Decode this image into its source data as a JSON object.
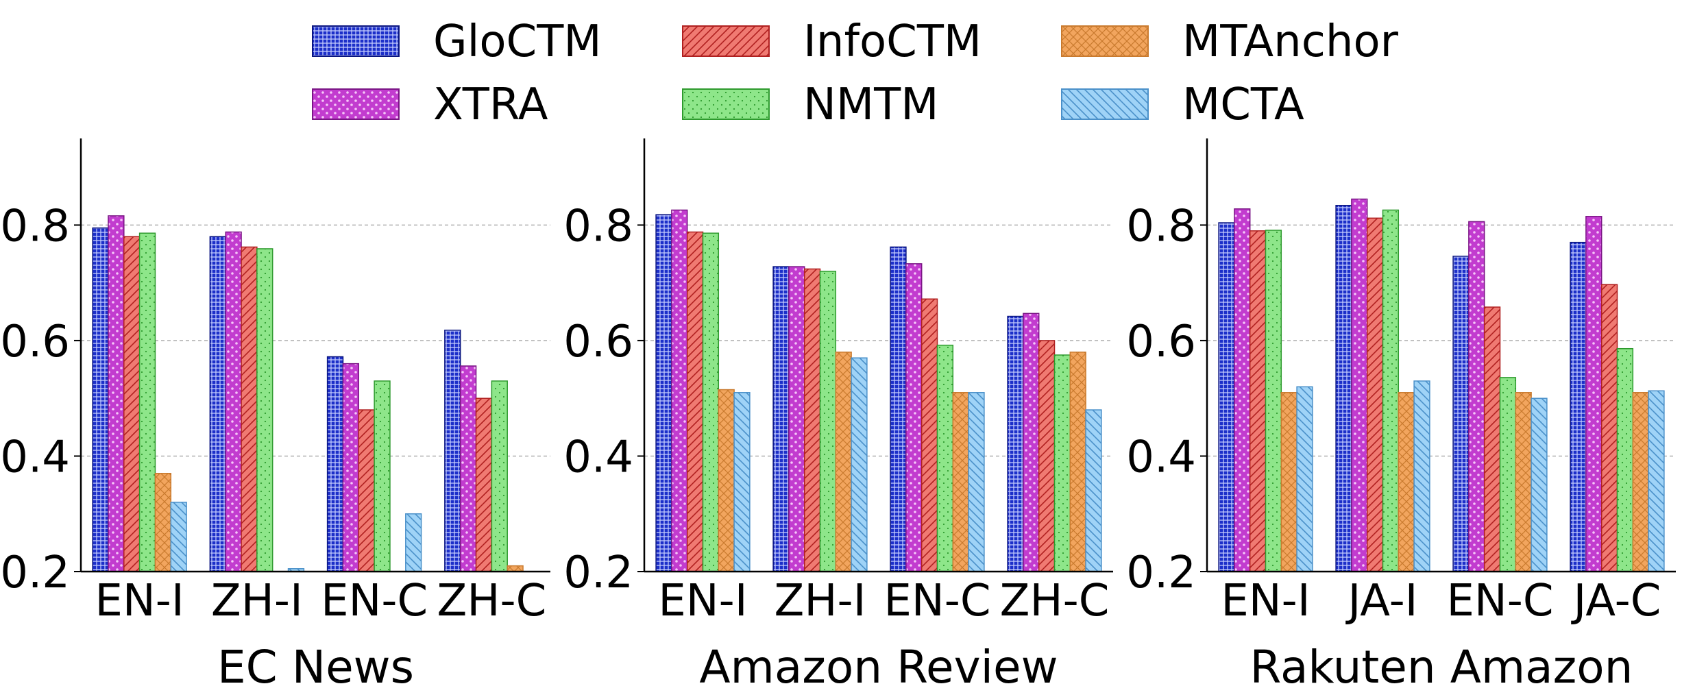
{
  "legend": [
    {
      "name": "GloCTM",
      "color": "#1c2fc9",
      "edge": "#0a1580",
      "pattern": "grid"
    },
    {
      "name": "InfoCTM",
      "color": "#f07a72",
      "edge": "#b02020",
      "pattern": "diag"
    },
    {
      "name": "MTAnchor",
      "color": "#f2a55e",
      "edge": "#c97a2e",
      "pattern": "cross"
    },
    {
      "name": "XTRA",
      "color": "#c23ccf",
      "edge": "#7a1585",
      "pattern": "dots"
    },
    {
      "name": "NMTM",
      "color": "#8ee68a",
      "edge": "#2e9a2e",
      "pattern": "fine"
    },
    {
      "name": "MCTA",
      "color": "#9fd3f7",
      "edge": "#4a90c9",
      "pattern": "back"
    }
  ],
  "chart_data": [
    {
      "type": "bar",
      "title": "EC News",
      "categories": [
        "EN-I",
        "ZH-I",
        "EN-C",
        "ZH-C"
      ],
      "ylim": [
        0.2,
        0.95
      ],
      "yticks": [
        "0.2",
        "0.4",
        "0.6",
        "0.8"
      ],
      "grid": true,
      "series": [
        {
          "name": "GloCTM",
          "values": [
            0.795,
            0.78,
            0.572,
            0.618
          ]
        },
        {
          "name": "XTRA",
          "values": [
            0.816,
            0.788,
            0.56,
            0.556
          ]
        },
        {
          "name": "InfoCTM",
          "values": [
            0.78,
            0.762,
            0.48,
            0.5
          ]
        },
        {
          "name": "NMTM",
          "values": [
            0.786,
            0.759,
            0.53,
            0.53
          ]
        },
        {
          "name": "MTAnchor",
          "values": [
            0.37,
            0.2,
            0.2,
            0.21
          ]
        },
        {
          "name": "MCTA",
          "values": [
            0.32,
            0.205,
            0.3,
            0.2
          ]
        }
      ]
    },
    {
      "type": "bar",
      "title": "Amazon Review",
      "categories": [
        "EN-I",
        "ZH-I",
        "EN-C",
        "ZH-C"
      ],
      "ylim": [
        0.2,
        0.95
      ],
      "yticks": [
        "0.2",
        "0.4",
        "0.6",
        "0.8"
      ],
      "grid": true,
      "series": [
        {
          "name": "GloCTM",
          "values": [
            0.818,
            0.728,
            0.762,
            0.642
          ]
        },
        {
          "name": "XTRA",
          "values": [
            0.826,
            0.728,
            0.733,
            0.647
          ]
        },
        {
          "name": "InfoCTM",
          "values": [
            0.788,
            0.724,
            0.672,
            0.6
          ]
        },
        {
          "name": "NMTM",
          "values": [
            0.786,
            0.72,
            0.592,
            0.575
          ]
        },
        {
          "name": "MTAnchor",
          "values": [
            0.515,
            0.58,
            0.51,
            0.58
          ]
        },
        {
          "name": "MCTA",
          "values": [
            0.51,
            0.57,
            0.51,
            0.48
          ]
        }
      ]
    },
    {
      "type": "bar",
      "title": "Rakuten Amazon",
      "categories": [
        "EN-I",
        "JA-I",
        "EN-C",
        "JA-C"
      ],
      "ylim": [
        0.2,
        0.95
      ],
      "yticks": [
        "0.2",
        "0.4",
        "0.6",
        "0.8"
      ],
      "grid": true,
      "series": [
        {
          "name": "GloCTM",
          "values": [
            0.804,
            0.834,
            0.746,
            0.77
          ]
        },
        {
          "name": "XTRA",
          "values": [
            0.828,
            0.845,
            0.806,
            0.815
          ]
        },
        {
          "name": "InfoCTM",
          "values": [
            0.79,
            0.812,
            0.658,
            0.697
          ]
        },
        {
          "name": "NMTM",
          "values": [
            0.791,
            0.826,
            0.536,
            0.586
          ]
        },
        {
          "name": "MTAnchor",
          "values": [
            0.51,
            0.51,
            0.51,
            0.51
          ]
        },
        {
          "name": "MCTA",
          "values": [
            0.52,
            0.53,
            0.5,
            0.513
          ]
        }
      ]
    }
  ]
}
